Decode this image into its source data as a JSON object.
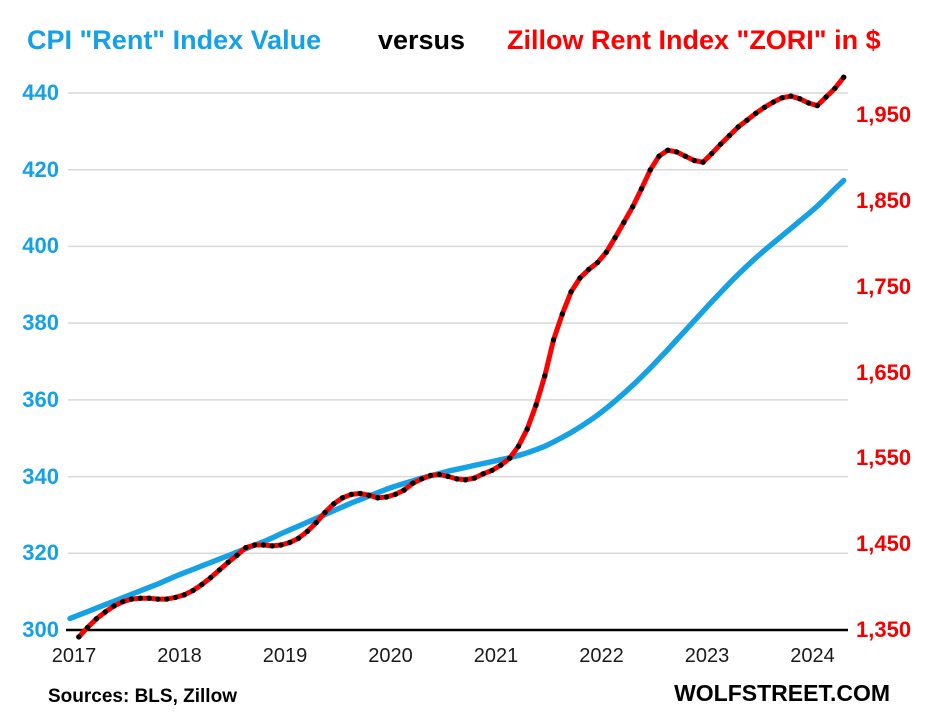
{
  "title": {
    "part1": "CPI \"Rent\" Index Value",
    "part2": "versus",
    "part3": "Zillow Rent Index \"ZORI\" in $"
  },
  "footer": {
    "sources": "Sources: BLS, Zillow",
    "brand": "WOLFSTREET.COM"
  },
  "colors": {
    "cpi_line": "#14A1E6",
    "cpi_label": "#14A1E6",
    "zori_line": "#FF0000",
    "zori_label": "#F50000",
    "dot": "#000000",
    "grid": "#D8D8D8",
    "axis": "#000000",
    "x_label": "#1A1A1A"
  },
  "chart_data": {
    "type": "line",
    "x_start": {
      "year": 2017,
      "month": 1
    },
    "x_tick_labels": [
      "2017",
      "2018",
      "2019",
      "2020",
      "2021",
      "2022",
      "2023",
      "2024"
    ],
    "left_axis": {
      "title_series": "CPI Rent Index Value",
      "min": 300,
      "max": 440,
      "step": 20,
      "tick_labels": [
        "300",
        "320",
        "340",
        "360",
        "380",
        "400",
        "420",
        "440"
      ],
      "grid": true
    },
    "right_axis": {
      "title_series": "Zillow Rent Index ZORI in $",
      "min": 1350,
      "max": 1950,
      "step": 100,
      "tick_labels": [
        "1,350",
        "1,450",
        "1,550",
        "1,650",
        "1,750",
        "1,850",
        "1,950"
      ],
      "grid": false
    },
    "legend_position": "none",
    "series": [
      {
        "name": "CPI Rent Index Value",
        "axis": "left",
        "color_role": "cpi_line",
        "style": "solid",
        "start_month_index": 0,
        "values": [
          303.0,
          303.9,
          304.8,
          305.7,
          306.6,
          307.5,
          308.4,
          309.3,
          310.2,
          311.1,
          312.0,
          313.0,
          314.0,
          314.9,
          315.8,
          316.7,
          317.6,
          318.5,
          319.4,
          320.3,
          321.2,
          322.1,
          323.0,
          324.0,
          325.1,
          326.1,
          327.1,
          328.1,
          329.1,
          330.1,
          331.1,
          332.1,
          333.1,
          334.0,
          334.9,
          335.8,
          336.7,
          337.5,
          338.2,
          338.9,
          339.6,
          340.2,
          340.8,
          341.4,
          341.9,
          342.4,
          342.9,
          343.4,
          343.9,
          344.4,
          344.9,
          345.5,
          346.2,
          347.0,
          347.9,
          349.0,
          350.2,
          351.5,
          352.9,
          354.4,
          356.0,
          357.8,
          359.7,
          361.7,
          363.8,
          366.0,
          368.3,
          370.7,
          373.1,
          375.6,
          378.1,
          380.6,
          383.1,
          385.6,
          388.0,
          390.4,
          392.7,
          394.9,
          397.0,
          399.0,
          400.9,
          402.8,
          404.7,
          406.6,
          408.5,
          410.5,
          412.7,
          415.0,
          417.2
        ]
      },
      {
        "name": "Zillow Rent Index ZORI in $",
        "axis": "right",
        "color_role": "zori_line",
        "style": "solid_with_dots",
        "start_month_index": 1,
        "values": [
          1342,
          1353,
          1363,
          1371,
          1378,
          1383,
          1386,
          1387,
          1387,
          1386,
          1386,
          1388,
          1391,
          1396,
          1403,
          1411,
          1420,
          1429,
          1437,
          1446,
          1449,
          1449,
          1448,
          1449,
          1452,
          1457,
          1465,
          1475,
          1487,
          1497,
          1504,
          1508,
          1509,
          1507,
          1504,
          1505,
          1508,
          1513,
          1521,
          1526,
          1530,
          1531,
          1529,
          1526,
          1525,
          1527,
          1532,
          1536,
          1542,
          1550,
          1564,
          1584,
          1612,
          1646,
          1688,
          1718,
          1744,
          1760,
          1770,
          1778,
          1790,
          1807,
          1825,
          1843,
          1864,
          1886,
          1902,
          1909,
          1907,
          1902,
          1897,
          1895,
          1905,
          1916,
          1926,
          1936,
          1944,
          1952,
          1959,
          1965,
          1970,
          1972,
          1969,
          1964,
          1961,
          1971,
          1981,
          1994
        ]
      }
    ]
  }
}
